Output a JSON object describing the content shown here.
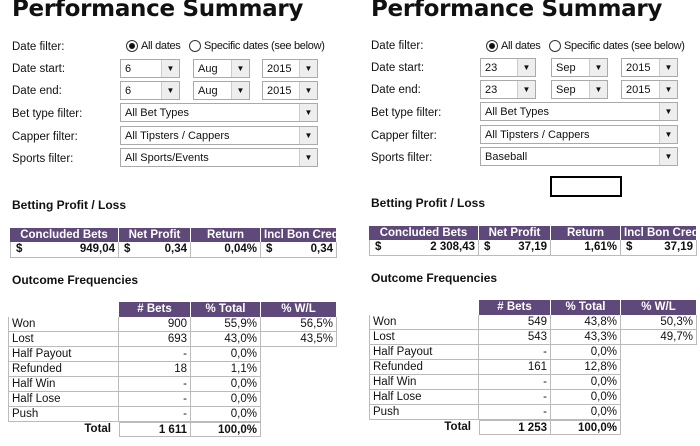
{
  "labels": {
    "date_filter": "Date filter:",
    "date_start": "Date start:",
    "date_end": "Date end:",
    "bet_type": "Bet type filter:",
    "capper": "Capper filter:",
    "sports": "Sports filter:",
    "all_dates": "All dates",
    "specific_dates": "Specific dates (see below)",
    "profit_heading": "Betting Profit / Loss",
    "outcome_heading": "Outcome Frequencies",
    "profit_cols": [
      "Concluded Bets",
      "Net Profit",
      "Return",
      "Incl Bon Cred"
    ],
    "outcome_cols": [
      "# Bets",
      "% Total",
      "% W/L"
    ],
    "currency": "$",
    "total": "Total",
    "dropdown_arrow": "▼"
  },
  "colors": {
    "header": "#5f497a"
  },
  "panels": [
    {
      "title": "Performance Summary",
      "date_filter": "All dates",
      "start": {
        "day": "6",
        "month": "Aug",
        "year": "2015"
      },
      "end": {
        "day": "6",
        "month": "Aug",
        "year": "2015"
      },
      "bet_type": "All Bet Types",
      "capper": "All Tipsters / Cappers",
      "sports": "All Sports/Events",
      "profit": {
        "concluded": "949,04",
        "net": "0,34",
        "return": "0,04%",
        "incl_bon": "0,34"
      },
      "outcomes": [
        {
          "label": "Won",
          "bets": "900",
          "total": "55,9%",
          "wl": "56,5%"
        },
        {
          "label": "Lost",
          "bets": "693",
          "total": "43,0%",
          "wl": "43,5%"
        },
        {
          "label": "Half Payout",
          "bets": "-",
          "total": "0,0%"
        },
        {
          "label": "Refunded",
          "bets": "18",
          "total": "1,1%"
        },
        {
          "label": "Half Win",
          "bets": "-",
          "total": "0,0%"
        },
        {
          "label": "Half Lose",
          "bets": "-",
          "total": "0,0%"
        },
        {
          "label": "Push",
          "bets": "-",
          "total": "0,0%"
        }
      ],
      "totals": {
        "bets": "1 611",
        "total": "100,0%"
      }
    },
    {
      "title": "Performance Summary",
      "date_filter": "All dates",
      "start": {
        "day": "23",
        "month": "Sep",
        "year": "2015"
      },
      "end": {
        "day": "23",
        "month": "Sep",
        "year": "2015"
      },
      "bet_type": "All Bet Types",
      "capper": "All Tipsters / Cappers",
      "sports": "Baseball",
      "profit": {
        "concluded": "2 308,43",
        "net": "37,19",
        "return": "1,61%",
        "incl_bon": "37,19"
      },
      "outcomes": [
        {
          "label": "Won",
          "bets": "549",
          "total": "43,8%",
          "wl": "50,3%"
        },
        {
          "label": "Lost",
          "bets": "543",
          "total": "43,3%",
          "wl": "49,7%"
        },
        {
          "label": "Half Payout",
          "bets": "-",
          "total": "0,0%"
        },
        {
          "label": "Refunded",
          "bets": "161",
          "total": "12,8%"
        },
        {
          "label": "Half Win",
          "bets": "-",
          "total": "0,0%"
        },
        {
          "label": "Half Lose",
          "bets": "-",
          "total": "0,0%"
        },
        {
          "label": "Push",
          "bets": "-",
          "total": "0,0%"
        }
      ],
      "totals": {
        "bets": "1 253",
        "total": "100,0%"
      }
    }
  ]
}
